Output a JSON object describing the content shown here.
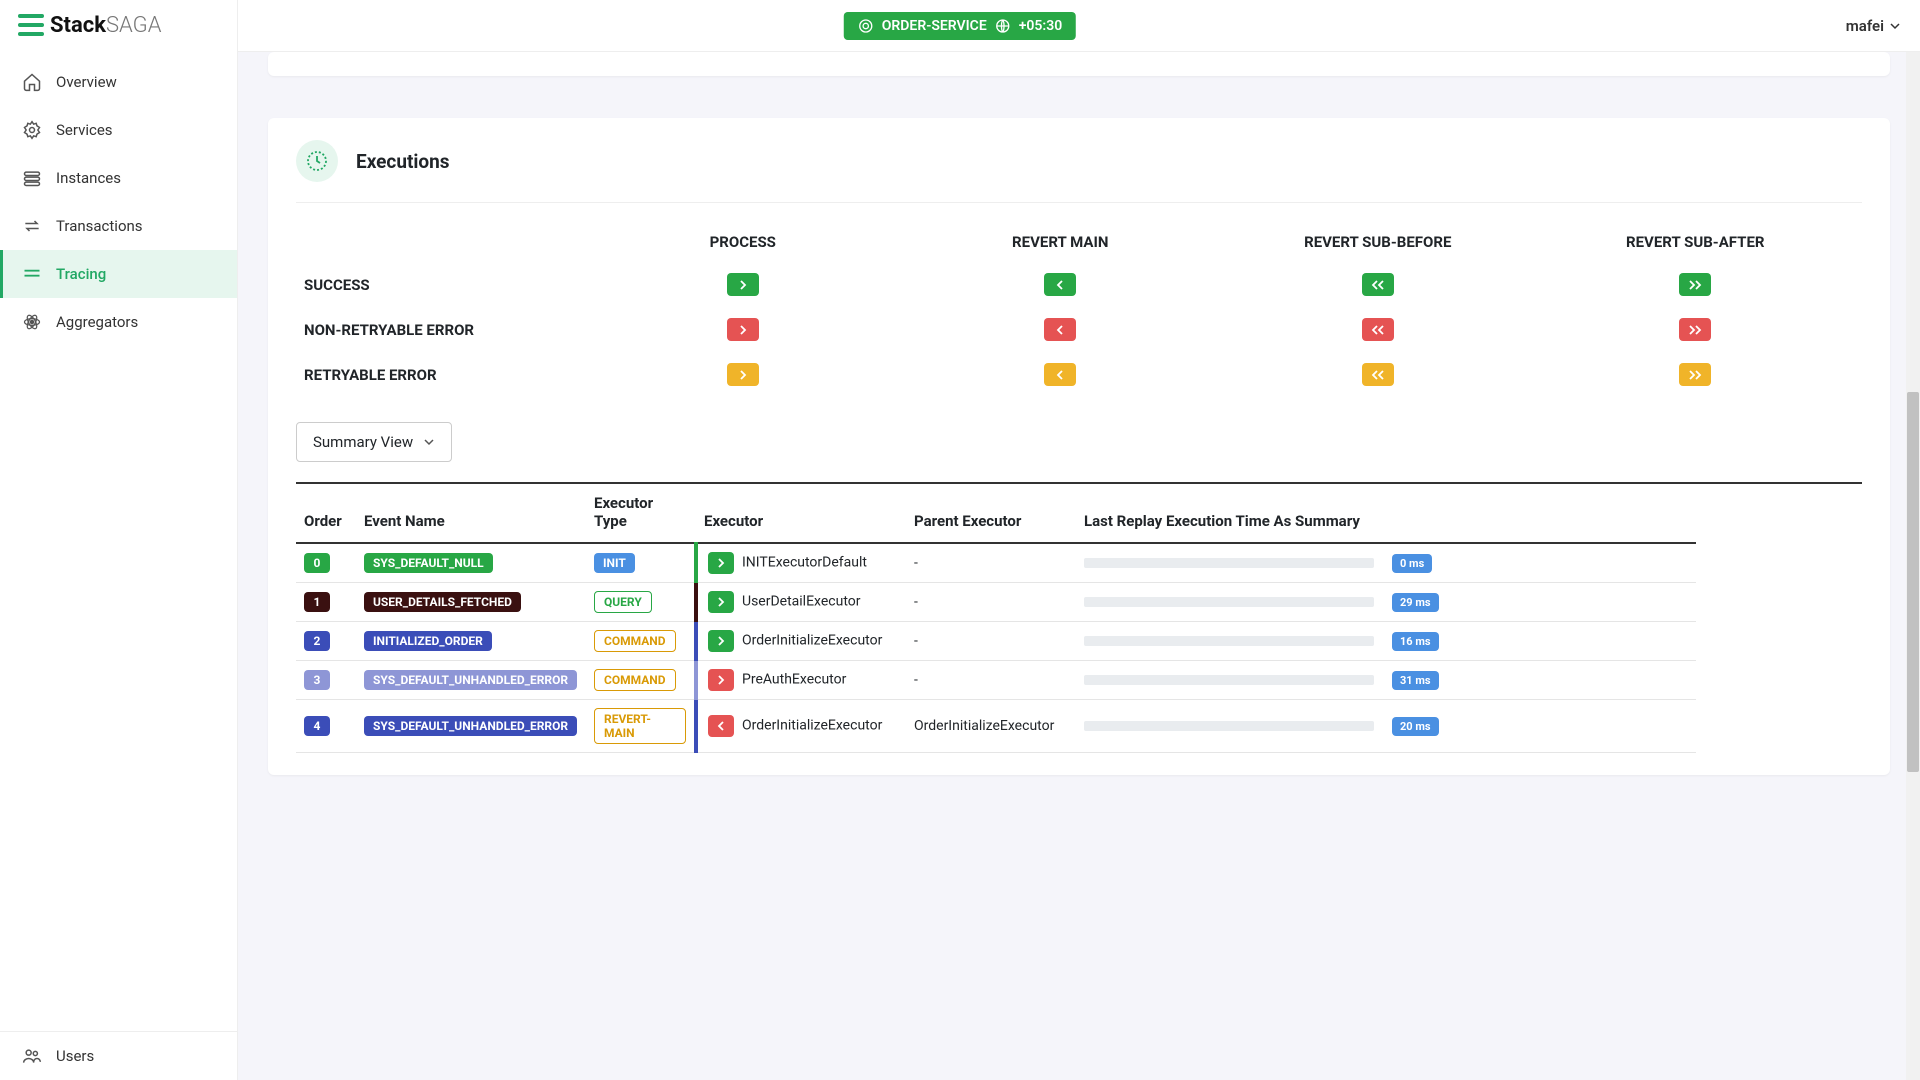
{
  "logo": {
    "brand1": "Stack",
    "brand2": "SAGA"
  },
  "sidebar": {
    "items": [
      {
        "label": "Overview",
        "icon": "home"
      },
      {
        "label": "Services",
        "icon": "gear"
      },
      {
        "label": "Instances",
        "icon": "stack"
      },
      {
        "label": "Transactions",
        "icon": "swap"
      },
      {
        "label": "Tracing",
        "icon": "lines",
        "active": true
      },
      {
        "label": "Aggregators",
        "icon": "atom"
      }
    ],
    "footer": {
      "label": "Users",
      "icon": "users"
    }
  },
  "topbar": {
    "service": "ORDER-SERVICE",
    "tz": "+05:30",
    "user": "mafei"
  },
  "panel": {
    "title": "Executions"
  },
  "legend": {
    "columns": [
      "PROCESS",
      "REVERT MAIN",
      "REVERT SUB-BEFORE",
      "REVERT SUB-AFTER"
    ],
    "rows": [
      {
        "label": "SUCCESS",
        "color": "#28a745",
        "icons": [
          "right",
          "left",
          "dleft",
          "dright"
        ]
      },
      {
        "label": "NON-RETRYABLE ERROR",
        "color": "#e55353",
        "icons": [
          "right",
          "left",
          "dleft",
          "dright"
        ]
      },
      {
        "label": "RETRYABLE ERROR",
        "color": "#f0b429",
        "icons": [
          "right",
          "left",
          "dleft",
          "dright"
        ]
      }
    ]
  },
  "viewSelect": "Summary View",
  "table": {
    "columns": [
      "Order",
      "Event Name",
      "Executor Type",
      "Executor",
      "Parent Executor",
      "Last Replay Execution Time As Summary"
    ],
    "rows": [
      {
        "order": "0",
        "order_bg": "#28a745",
        "event": "SYS_DEFAULT_NULL",
        "event_bg": "#28a745",
        "etype": "INIT",
        "etype_bg": "#4a90e2",
        "etype_txt": "#4a90e2",
        "etype_outline": false,
        "bar_color": "#28a745",
        "exec_icon": "right",
        "exec_bg": "#28a745",
        "executor": "INITExecutorDefault",
        "parent": "-",
        "progress": 0,
        "time": "0 ms"
      },
      {
        "order": "1",
        "order_bg": "#3a1010",
        "event": "USER_DETAILS_FETCHED",
        "event_bg": "#3a1010",
        "etype": "QUERY",
        "etype_bg": "#ffffff",
        "etype_txt": "#28a745",
        "etype_outline": true,
        "bar_color": "#3a1010",
        "exec_icon": "right",
        "exec_bg": "#28a745",
        "executor": "UserDetailExecutor",
        "parent": "-",
        "progress": 29,
        "time": "29 ms"
      },
      {
        "order": "2",
        "order_bg": "#3b4db8",
        "event": "INITIALIZED_ORDER",
        "event_bg": "#3b4db8",
        "etype": "COMMAND",
        "etype_bg": "#ffffff",
        "etype_txt": "#d99a06",
        "etype_outline": true,
        "bar_color": "#3b4db8",
        "exec_icon": "right",
        "exec_bg": "#28a745",
        "executor": "OrderInitializeExecutor",
        "parent": "-",
        "progress": 16,
        "time": "16 ms"
      },
      {
        "order": "3",
        "order_bg": "#8e96d6",
        "event": "SYS_DEFAULT_UNHANDLED_ERROR",
        "event_bg": "#8e96d6",
        "etype": "COMMAND",
        "etype_bg": "#ffffff",
        "etype_txt": "#d99a06",
        "etype_outline": true,
        "bar_color": "#8e96d6",
        "exec_icon": "right",
        "exec_bg": "#e55353",
        "executor": "PreAuthExecutor",
        "parent": "-",
        "progress": 31,
        "time": "31 ms"
      },
      {
        "order": "4",
        "order_bg": "#3b4db8",
        "event": "SYS_DEFAULT_UNHANDLED_ERROR",
        "event_bg": "#3b4db8",
        "etype": "REVERT-MAIN",
        "etype_bg": "#ffffff",
        "etype_txt": "#d99a06",
        "etype_outline": true,
        "bar_color": "#3b4db8",
        "exec_icon": "left",
        "exec_bg": "#e55353",
        "executor": "OrderInitializeExecutor",
        "parent": "OrderInitializeExecutor",
        "progress": 20,
        "time": "20 ms"
      }
    ]
  },
  "colors": {
    "brand": "#22a864",
    "progress": "#4a90e2"
  }
}
